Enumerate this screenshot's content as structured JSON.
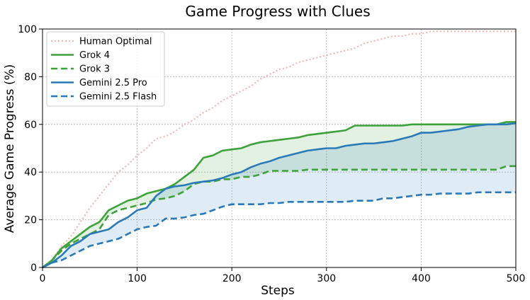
{
  "chart_data": {
    "type": "line",
    "title": "Game Progress with Clues",
    "xlabel": "Steps",
    "ylabel": "Average Game Progress (%)",
    "xlim": [
      0,
      500
    ],
    "ylim": [
      0,
      100
    ],
    "xticks": [
      0,
      100,
      200,
      300,
      400,
      500
    ],
    "yticks": [
      0,
      20,
      40,
      60,
      80,
      100
    ],
    "grid": true,
    "legend_position": "top-left",
    "series": [
      {
        "name": "Human Optimal",
        "color": "#f4b4b8",
        "style": "dotted",
        "x": [
          0,
          10,
          20,
          30,
          40,
          50,
          60,
          70,
          80,
          90,
          100,
          110,
          120,
          130,
          140,
          150,
          160,
          170,
          180,
          190,
          200,
          210,
          220,
          230,
          240,
          250,
          260,
          270,
          280,
          290,
          300,
          310,
          320,
          330,
          340,
          350,
          360,
          370,
          380,
          390,
          400,
          410,
          420,
          430,
          440,
          450,
          460,
          470,
          480,
          490,
          500
        ],
        "y": [
          0,
          3,
          9,
          13,
          19,
          25,
          30,
          35,
          40,
          43,
          47,
          50,
          54,
          55,
          57,
          60,
          62,
          65,
          67,
          70,
          72,
          74,
          76,
          79,
          81,
          83,
          84,
          86,
          87,
          88,
          89,
          90,
          91,
          92,
          94,
          95,
          96,
          97,
          97,
          98,
          98,
          99,
          99,
          99,
          99,
          99,
          99,
          99,
          99,
          99,
          99
        ]
      },
      {
        "name": "Grok 4",
        "color": "#3ea23a",
        "style": "solid",
        "x": [
          0,
          10,
          20,
          30,
          40,
          50,
          60,
          70,
          80,
          90,
          100,
          110,
          120,
          130,
          140,
          150,
          160,
          170,
          180,
          190,
          200,
          210,
          220,
          230,
          240,
          250,
          260,
          270,
          280,
          290,
          300,
          310,
          320,
          330,
          340,
          350,
          360,
          370,
          380,
          390,
          400,
          410,
          420,
          430,
          440,
          450,
          460,
          470,
          480,
          490,
          500
        ],
        "y": [
          0,
          3,
          8,
          11,
          14,
          17,
          19,
          24,
          26,
          28,
          29,
          31,
          32,
          33,
          35,
          38,
          41,
          46,
          47,
          49,
          49.5,
          50,
          51.5,
          52.5,
          53,
          53.5,
          54,
          54.5,
          55.5,
          56,
          56.5,
          57,
          57.5,
          59.5,
          59.5,
          59.5,
          59.5,
          59.5,
          59.5,
          60,
          60,
          60,
          60,
          60,
          60,
          60,
          60,
          60,
          60,
          61,
          61
        ]
      },
      {
        "name": "Grok 3",
        "color": "#3ea23a",
        "style": "dashed",
        "x": [
          0,
          10,
          20,
          30,
          40,
          50,
          60,
          70,
          80,
          90,
          100,
          110,
          120,
          130,
          140,
          150,
          160,
          170,
          180,
          190,
          200,
          210,
          220,
          230,
          240,
          250,
          260,
          270,
          280,
          290,
          300,
          310,
          320,
          330,
          340,
          350,
          360,
          370,
          380,
          390,
          400,
          410,
          420,
          430,
          440,
          450,
          460,
          470,
          480,
          490,
          500
        ],
        "y": [
          0,
          3,
          7,
          10,
          12,
          14,
          16,
          22,
          24,
          25,
          26,
          27,
          28.5,
          29,
          30,
          32,
          35,
          36,
          36,
          37,
          37,
          38,
          38,
          39,
          40.5,
          40.5,
          40.5,
          40.5,
          41,
          41,
          41,
          41,
          41,
          41,
          41,
          41,
          41,
          41,
          41,
          41,
          41,
          41,
          41,
          41,
          41,
          41,
          41,
          41,
          41,
          42.5,
          42.5
        ]
      },
      {
        "name": "Gemini 2.5 Pro",
        "color": "#2a7ab9",
        "style": "solid",
        "x": [
          0,
          10,
          20,
          30,
          40,
          50,
          60,
          70,
          80,
          90,
          100,
          110,
          120,
          130,
          140,
          150,
          160,
          170,
          180,
          190,
          200,
          210,
          220,
          230,
          240,
          250,
          260,
          270,
          280,
          290,
          300,
          310,
          320,
          330,
          340,
          350,
          360,
          370,
          380,
          390,
          400,
          410,
          420,
          430,
          440,
          450,
          460,
          470,
          480,
          490,
          500
        ],
        "y": [
          0,
          2,
          5,
          9,
          11,
          14,
          15,
          16,
          19,
          21,
          24,
          25,
          30,
          33,
          34,
          34.5,
          35.5,
          36,
          36.5,
          37.5,
          39,
          40,
          42,
          43.5,
          44.5,
          46,
          47,
          48,
          49,
          49.5,
          50,
          50,
          51,
          51.5,
          52,
          52,
          52.5,
          53,
          54,
          55,
          56.5,
          56.5,
          57,
          57.5,
          58,
          59,
          59.5,
          60,
          60,
          60,
          60.5
        ]
      },
      {
        "name": "Gemini 2.5 Flash",
        "color": "#2a7ab9",
        "style": "dashed",
        "x": [
          0,
          10,
          20,
          30,
          40,
          50,
          60,
          70,
          80,
          90,
          100,
          110,
          120,
          130,
          140,
          150,
          160,
          170,
          180,
          190,
          200,
          210,
          220,
          230,
          240,
          250,
          260,
          270,
          280,
          290,
          300,
          310,
          320,
          330,
          340,
          350,
          360,
          370,
          380,
          390,
          400,
          410,
          420,
          430,
          440,
          450,
          460,
          470,
          480,
          490,
          500
        ],
        "y": [
          0,
          2,
          3,
          5,
          7,
          9,
          10,
          11,
          12,
          14,
          16,
          17,
          17.5,
          20.5,
          20.5,
          21,
          22,
          22.5,
          24,
          25.5,
          26.5,
          26.5,
          26.5,
          26.5,
          27,
          27,
          27.5,
          27.5,
          27.5,
          27.5,
          27.5,
          27.5,
          27.5,
          28,
          28,
          28,
          29,
          29,
          29.5,
          30,
          30.5,
          30.5,
          31,
          31,
          31,
          31,
          31.5,
          31.5,
          31.5,
          31.5,
          31.5
        ]
      }
    ],
    "fills": [
      {
        "between": [
          "Grok 4",
          "Grok 3"
        ],
        "color": "#3ea23a",
        "opacity": 0.15
      },
      {
        "between": [
          "Gemini 2.5 Pro",
          "Gemini 2.5 Flash"
        ],
        "color": "#2a7ab9",
        "opacity": 0.15
      }
    ]
  }
}
